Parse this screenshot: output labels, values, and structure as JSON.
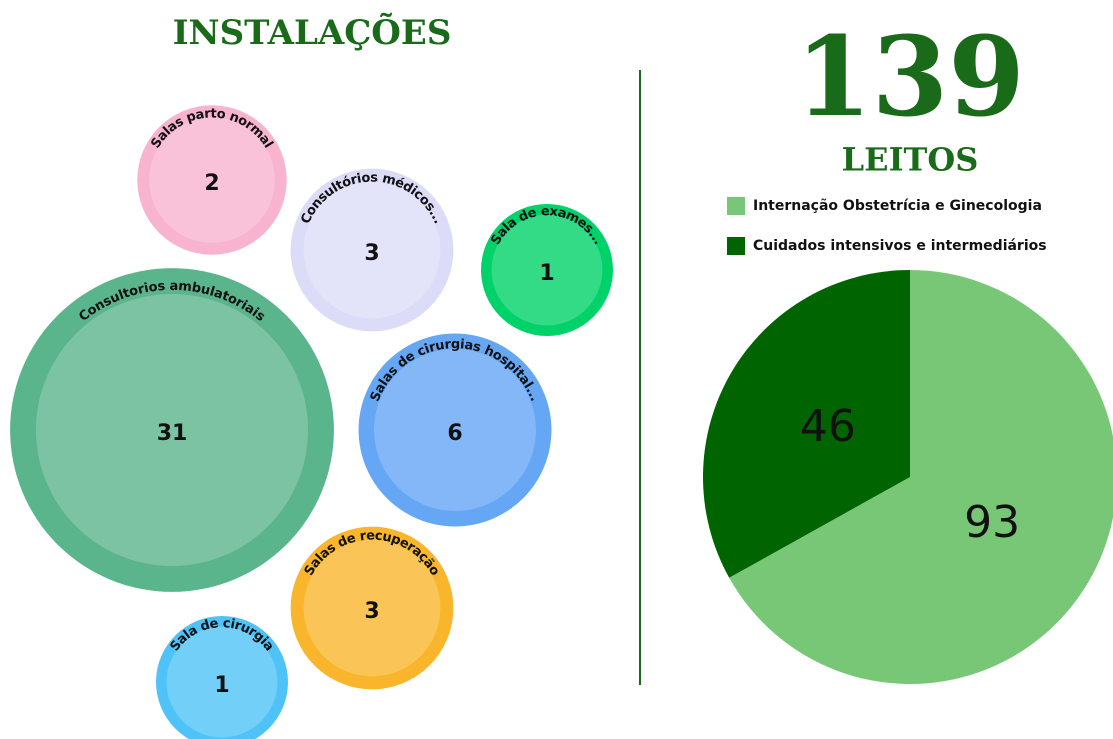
{
  "chart_data": [
    {
      "type": "bubble",
      "title": "INSTALAÇÕES",
      "categories": [
        "Salas parto normal",
        "Consultórios médicos...",
        "Sala de exames...",
        "Consultorios ambulatoriais",
        "Salas de cirurgias hospital...",
        "Salas de recuperação",
        "Sala de cirurgia"
      ],
      "values": [
        2,
        3,
        1,
        31,
        6,
        3,
        1
      ],
      "colors": [
        "#f8b3cf",
        "#dcdcf8",
        "#00d26a",
        "#5bb58c",
        "#65a6f5",
        "#f9b62c",
        "#4fc3f7"
      ]
    },
    {
      "type": "pie",
      "total": 139,
      "title": "LEITOS",
      "categories": [
        "Internação Obstetrícia e Ginecologia",
        "Cuidados intensivos e intermediários"
      ],
      "values": [
        93,
        46
      ],
      "colors": [
        "#77c777",
        "#006400"
      ]
    }
  ]
}
